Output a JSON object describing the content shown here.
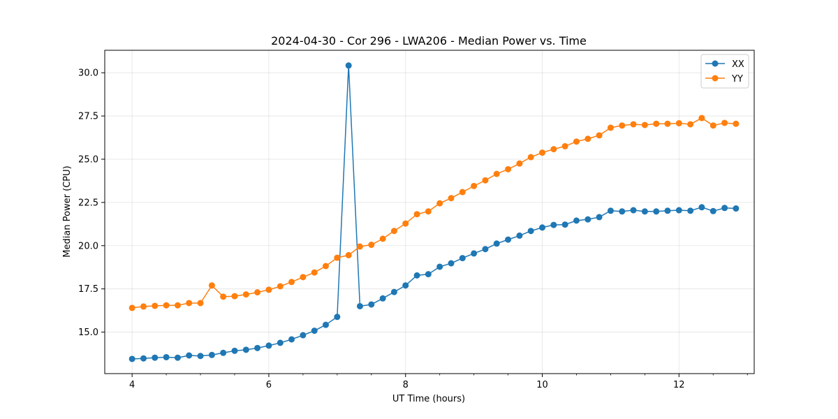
{
  "chart_data": {
    "type": "line",
    "title": "2024-04-30 - Cor 296 - LWA206 - Median Power vs. Time",
    "xlabel": "UT Time (hours)",
    "ylabel": "Median Power (CPU)",
    "xlim": [
      3.6,
      13.1
    ],
    "ylim": [
      12.6,
      31.3
    ],
    "xticks": [
      4,
      6,
      8,
      10,
      12
    ],
    "xtick_labels": [
      "4",
      "6",
      "8",
      "10",
      "12"
    ],
    "yticks": [
      15.0,
      17.5,
      20.0,
      22.5,
      25.0,
      27.5,
      30.0
    ],
    "ytick_labels": [
      "15.0",
      "17.5",
      "20.0",
      "22.5",
      "25.0",
      "27.5",
      "30.0"
    ],
    "grid": true,
    "legend_position": "top-right",
    "x": [
      4.0,
      4.167,
      4.333,
      4.5,
      4.667,
      4.833,
      5.0,
      5.167,
      5.333,
      5.5,
      5.667,
      5.833,
      6.0,
      6.167,
      6.333,
      6.5,
      6.667,
      6.833,
      7.0,
      7.167,
      7.333,
      7.5,
      7.667,
      7.833,
      8.0,
      8.167,
      8.333,
      8.5,
      8.667,
      8.833,
      9.0,
      9.167,
      9.333,
      9.5,
      9.667,
      9.833,
      10.0,
      10.167,
      10.333,
      10.5,
      10.667,
      10.833,
      11.0,
      11.167,
      11.333,
      11.5,
      11.667,
      11.833,
      12.0,
      12.167,
      12.333,
      12.5,
      12.667,
      12.833
    ],
    "series": [
      {
        "name": "XX",
        "color": "#1f77b4",
        "values": [
          13.45,
          13.48,
          13.52,
          13.55,
          13.52,
          13.65,
          13.62,
          13.68,
          13.8,
          13.92,
          13.98,
          14.08,
          14.22,
          14.38,
          14.58,
          14.82,
          15.08,
          15.42,
          15.88,
          30.42,
          16.5,
          16.6,
          16.95,
          17.32,
          17.7,
          18.28,
          18.35,
          18.78,
          18.98,
          19.28,
          19.55,
          19.8,
          20.12,
          20.35,
          20.58,
          20.85,
          21.05,
          21.2,
          21.22,
          21.45,
          21.52,
          21.65,
          22.02,
          21.98,
          22.05,
          21.98,
          21.98,
          22.02,
          22.05,
          22.02,
          22.22,
          22.0,
          22.18,
          22.15
        ]
      },
      {
        "name": "YY",
        "color": "#ff7f0e",
        "values": [
          16.4,
          16.48,
          16.52,
          16.55,
          16.55,
          16.68,
          16.68,
          17.7,
          17.05,
          17.08,
          17.18,
          17.3,
          17.45,
          17.65,
          17.9,
          18.18,
          18.45,
          18.82,
          19.3,
          19.45,
          19.95,
          20.05,
          20.4,
          20.85,
          21.28,
          21.82,
          21.98,
          22.45,
          22.75,
          23.1,
          23.45,
          23.78,
          24.15,
          24.42,
          24.75,
          25.12,
          25.38,
          25.58,
          25.75,
          26.02,
          26.18,
          26.38,
          26.82,
          26.95,
          27.02,
          26.98,
          27.05,
          27.05,
          27.08,
          27.02,
          27.38,
          26.95,
          27.1,
          27.05
        ]
      }
    ]
  }
}
